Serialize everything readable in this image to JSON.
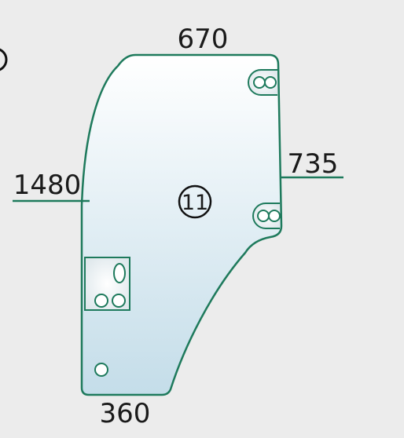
{
  "dimensions": {
    "top": "670",
    "right": "735",
    "left": "1480",
    "bottom": "360"
  },
  "part_number": "11",
  "colors": {
    "background": "#ececec",
    "outline": "#1e7a5c",
    "glass_top": "#ffffff",
    "glass_bottom": "#c4dde9",
    "text": "#1a1a1a"
  }
}
